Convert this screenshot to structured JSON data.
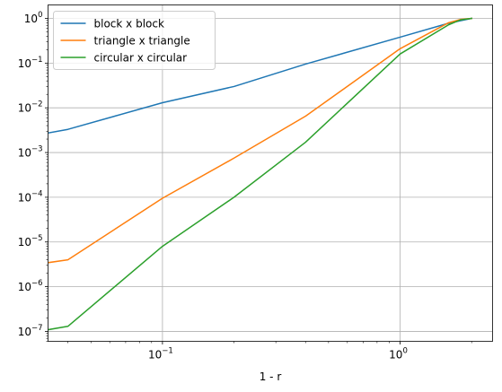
{
  "chart_data": {
    "type": "line",
    "title": "",
    "xlabel": "1 - r",
    "ylabel": "",
    "xscale": "log",
    "yscale": "log",
    "xlim": [
      0.033,
      2.45
    ],
    "ylim": [
      6e-08,
      2.0
    ],
    "grid": true,
    "legend_position": "top-left",
    "x_ticks": [
      {
        "value": 0.1,
        "label": "10",
        "exp": "−1"
      },
      {
        "value": 1,
        "label": "10",
        "exp": "0"
      }
    ],
    "y_ticks": [
      {
        "value": 1e-07,
        "label": "10",
        "exp": "−7"
      },
      {
        "value": 1e-06,
        "label": "10",
        "exp": "−6"
      },
      {
        "value": 1e-05,
        "label": "10",
        "exp": "−5"
      },
      {
        "value": 0.0001,
        "label": "10",
        "exp": "−4"
      },
      {
        "value": 0.001,
        "label": "10",
        "exp": "−3"
      },
      {
        "value": 0.01,
        "label": "10",
        "exp": "−2"
      },
      {
        "value": 0.1,
        "label": "10",
        "exp": "−1"
      },
      {
        "value": 1,
        "label": "10",
        "exp": "0"
      }
    ],
    "series": [
      {
        "name": "block x block",
        "color": "#1f77b4",
        "x": [
          0.03,
          0.04,
          0.1,
          0.2,
          0.4,
          1.0,
          1.6,
          2.0
        ],
        "y": [
          0.0025,
          0.0033,
          0.013,
          0.03,
          0.095,
          0.38,
          0.78,
          1.0
        ]
      },
      {
        "name": "triangle x triangle",
        "color": "#ff7f0e",
        "x": [
          0.03,
          0.04,
          0.1,
          0.2,
          0.4,
          1.0,
          1.6,
          1.8,
          2.0
        ],
        "y": [
          3.2e-06,
          4e-06,
          9.5e-05,
          0.00075,
          0.0065,
          0.21,
          0.8,
          0.95,
          1.0
        ]
      },
      {
        "name": "circular x circular",
        "color": "#2ca02c",
        "x": [
          0.03,
          0.04,
          0.1,
          0.2,
          0.4,
          1.0,
          1.6,
          1.8,
          2.0
        ],
        "y": [
          1e-07,
          1.3e-07,
          8e-06,
          0.0001,
          0.0017,
          0.16,
          0.72,
          0.93,
          1.0
        ]
      }
    ]
  }
}
